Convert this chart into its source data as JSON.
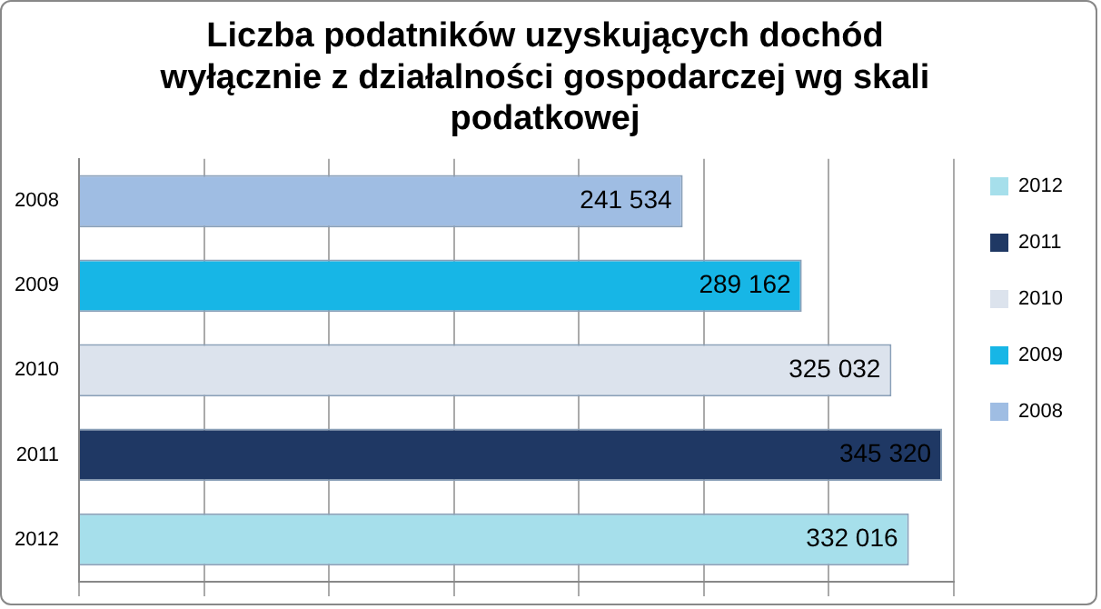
{
  "chart_data": {
    "type": "bar",
    "orientation": "horizontal",
    "stacked": true,
    "title": "Liczba podatników uzyskujących dochód wyłącznie z działalności gospodarczej wg skali podatkowej",
    "categories": [
      "2008",
      "2009",
      "2010",
      "2011",
      "2012"
    ],
    "series": [
      {
        "name": "2008",
        "color": "#9fbde3",
        "values": [
          241534,
          null,
          null,
          null,
          null
        ],
        "value_labels": [
          "241 534",
          null,
          null,
          null,
          null
        ]
      },
      {
        "name": "2009",
        "color": "#17b6e6",
        "values": [
          null,
          289162,
          null,
          null,
          null
        ],
        "value_labels": [
          null,
          "289 162",
          null,
          null,
          null
        ]
      },
      {
        "name": "2010",
        "color": "#dce3ed",
        "values": [
          null,
          null,
          325032,
          null,
          null
        ],
        "value_labels": [
          null,
          null,
          "325 032",
          null,
          null
        ]
      },
      {
        "name": "2011",
        "color": "#1f3864",
        "values": [
          null,
          null,
          null,
          345320,
          null
        ],
        "value_labels": [
          null,
          null,
          null,
          "345 320",
          null
        ]
      },
      {
        "name": "2012",
        "color": "#a6dfeb",
        "values": [
          null,
          null,
          null,
          null,
          332016
        ],
        "value_labels": [
          null,
          null,
          null,
          null,
          "332 016"
        ]
      }
    ],
    "grid": "x",
    "tick_labels": "y",
    "legend": "right"
  }
}
